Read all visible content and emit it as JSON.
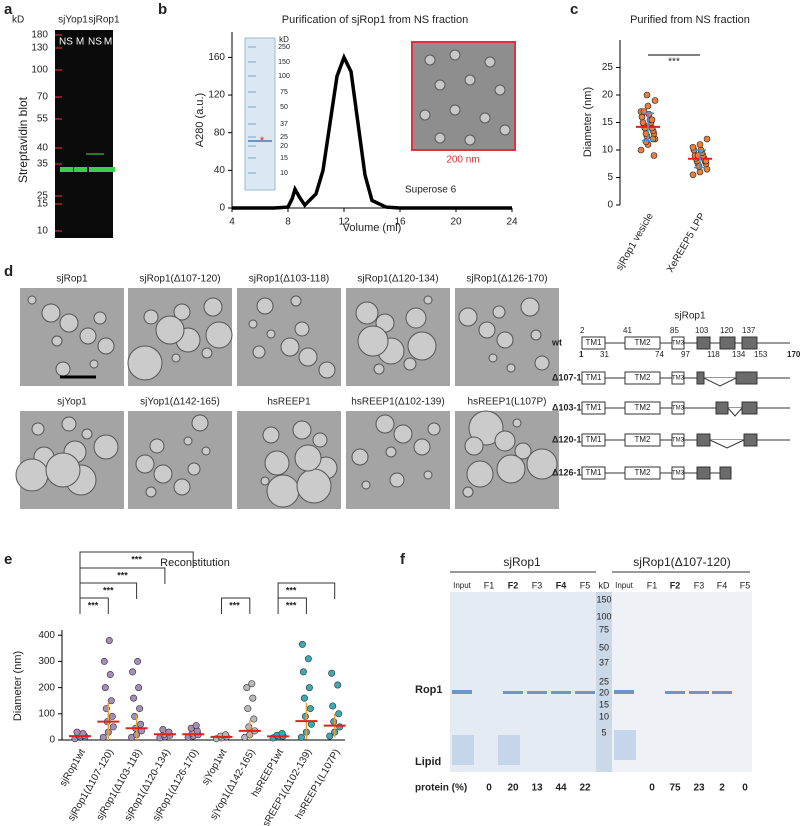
{
  "figure": {
    "a": {
      "letter": "a",
      "kd": "kD",
      "ladder": [
        180,
        130,
        100,
        70,
        55,
        40,
        35,
        25,
        15,
        10
      ],
      "groups": [
        "sjYop1",
        "sjRop1"
      ],
      "lanes": [
        "NS",
        "M",
        "NS",
        "M"
      ],
      "ylabel": "Streptavidin blot"
    },
    "d": {
      "letter": "d",
      "images": [
        "sjRop1",
        "sjRop1(Δ107-120)",
        "sjRop1(Δ103-118)",
        "sjRop1(Δ120-134)",
        "sjRop1(Δ126-170)",
        "sjYop1",
        "sjYop1(Δ142-165)",
        "hsREEP1",
        "hsREEP1(Δ102-139)",
        "hsREEP1(L107P)"
      ],
      "diagram": {
        "title": "sjRop1",
        "top_numbers": [
          2,
          41,
          85,
          103,
          120,
          137
        ],
        "bottom_numbers": [
          1,
          31,
          74,
          97,
          118,
          134,
          153,
          170
        ],
        "rows": [
          "wt",
          "Δ107-120",
          "Δ103-118",
          "Δ120-134",
          "Δ126-170"
        ],
        "domains": [
          "TM1",
          "TM2",
          "TM3"
        ]
      }
    },
    "f": {
      "letter": "f",
      "groups": [
        "sjRop1",
        "sjRop1(Δ107-120)"
      ],
      "lanes": [
        "Input",
        "F1",
        "F2",
        "F3",
        "F4",
        "F5"
      ],
      "kd": "kD",
      "ladder": [
        150,
        100,
        75,
        50,
        37,
        25,
        20,
        15,
        10,
        5
      ],
      "bands": [
        "Rop1",
        "Lipid"
      ],
      "row_label": "protein (%)",
      "protein": [
        [
          0,
          20,
          13,
          44,
          22
        ],
        [
          0,
          75,
          23,
          2,
          0
        ]
      ]
    }
  },
  "chart_data": [
    {
      "type": "line",
      "letter": "b",
      "title": "Purification of sjRop1 from NS fraction",
      "xlabel": "Volume (ml)",
      "ylabel": "A280 (a.u.)",
      "annotation": "Superose 6",
      "color": "#000000",
      "x": [
        4,
        6,
        7,
        8,
        8.3,
        8.5,
        8.8,
        9.2,
        10,
        10.5,
        11,
        11.5,
        12,
        12.5,
        13,
        13.5,
        14,
        15,
        16,
        20,
        24
      ],
      "values": [
        0,
        0,
        0,
        1,
        10,
        20,
        12,
        3,
        15,
        40,
        90,
        140,
        160,
        145,
        90,
        35,
        8,
        1,
        0,
        0,
        0
      ],
      "xlim": [
        4,
        24
      ],
      "xticks": [
        4,
        8,
        12,
        16,
        20,
        24
      ],
      "ylim": [
        0,
        187
      ],
      "yticks": [
        0,
        40,
        80,
        120,
        160
      ],
      "inset_kd": "kD",
      "inset_ladder": [
        250,
        150,
        100,
        75,
        50,
        37,
        25,
        20,
        15,
        10
      ],
      "scale_bar": "200 nm"
    },
    {
      "type": "scatter",
      "letter": "c",
      "title": "Purified from NS fraction",
      "ylabel": "Diameter (nm)",
      "significance": "***",
      "ylim": [
        0,
        30
      ],
      "yticks": [
        0,
        5,
        10,
        15,
        20,
        25
      ],
      "series": [
        {
          "name": "sjRop1 vesicle",
          "color": "#e8803c",
          "values": [
            10,
            11,
            12,
            12.5,
            13,
            13,
            13.5,
            14,
            14,
            14.5,
            15,
            15,
            15.5,
            16,
            16.5,
            17,
            18,
            19,
            20,
            9,
            11.5,
            12,
            14,
            15.5,
            17
          ],
          "mean": 14.2,
          "sd": 2.5
        },
        {
          "name": "XeREEP5 LPP",
          "color": "#e8803c",
          "values": [
            5.5,
            6,
            6.5,
            7,
            7.5,
            7.5,
            8,
            8,
            8.5,
            8.5,
            9,
            9,
            9.5,
            10,
            10,
            10.5,
            11,
            12,
            7,
            8,
            9
          ],
          "mean": 8.4,
          "sd": 1.6
        }
      ]
    },
    {
      "type": "scatter",
      "letter": "e",
      "title": "Reconstitution",
      "ylabel": "Diameter (nm)",
      "significance": [
        "***",
        "***",
        "***",
        "***",
        "***",
        "***",
        "***"
      ],
      "ylim": [
        0,
        420
      ],
      "yticks": [
        0,
        100,
        200,
        300,
        400
      ],
      "series": [
        {
          "name": "sjRop1wt",
          "color": "#a68bbd",
          "values": [
            5,
            10,
            12,
            15,
            18,
            20,
            25,
            30
          ],
          "mean": 15,
          "sd": 6
        },
        {
          "name": "sjRop1(Δ107-120)",
          "color": "#a68bbd",
          "values": [
            10,
            30,
            50,
            70,
            90,
            120,
            150,
            200,
            250,
            300,
            380
          ],
          "mean": 70,
          "sd": 75
        },
        {
          "name": "sjRop1(Δ103-118)",
          "color": "#a68bbd",
          "values": [
            10,
            20,
            35,
            45,
            60,
            90,
            120,
            160,
            200,
            260,
            300
          ],
          "mean": 45,
          "sd": 50
        },
        {
          "name": "sjRop1(Δ120-134)",
          "color": "#a68bbd",
          "values": [
            8,
            12,
            18,
            22,
            30,
            40
          ],
          "mean": 22,
          "sd": 10
        },
        {
          "name": "sjRop1(Δ126-170)",
          "color": "#a68bbd",
          "values": [
            10,
            15,
            20,
            25,
            35,
            45,
            55
          ],
          "mean": 22,
          "sd": 12
        },
        {
          "name": "sjYop1wt",
          "color": "#b8b8b8",
          "values": [
            5,
            8,
            12,
            15,
            20
          ],
          "mean": 12,
          "sd": 4
        },
        {
          "name": "sjYop1(Δ142-165)",
          "color": "#b8b8b8",
          "values": [
            10,
            20,
            35,
            50,
            80,
            120,
            160,
            200,
            215
          ],
          "mean": 35,
          "sd": 40
        },
        {
          "name": "hsREEP1wt",
          "color": "#3ea8b5",
          "values": [
            8,
            12,
            15,
            18,
            25
          ],
          "mean": 14,
          "sd": 5
        },
        {
          "name": "hsREEP1(Δ102-139)",
          "color": "#3ea8b5",
          "values": [
            10,
            30,
            60,
            90,
            120,
            160,
            200,
            260,
            310,
            365
          ],
          "mean": 72,
          "sd": 70
        },
        {
          "name": "hsREEP1(L107P)",
          "color": "#3ea8b5",
          "values": [
            15,
            30,
            50,
            70,
            100,
            130,
            210,
            255
          ],
          "mean": 55,
          "sd": 45
        }
      ]
    }
  ]
}
